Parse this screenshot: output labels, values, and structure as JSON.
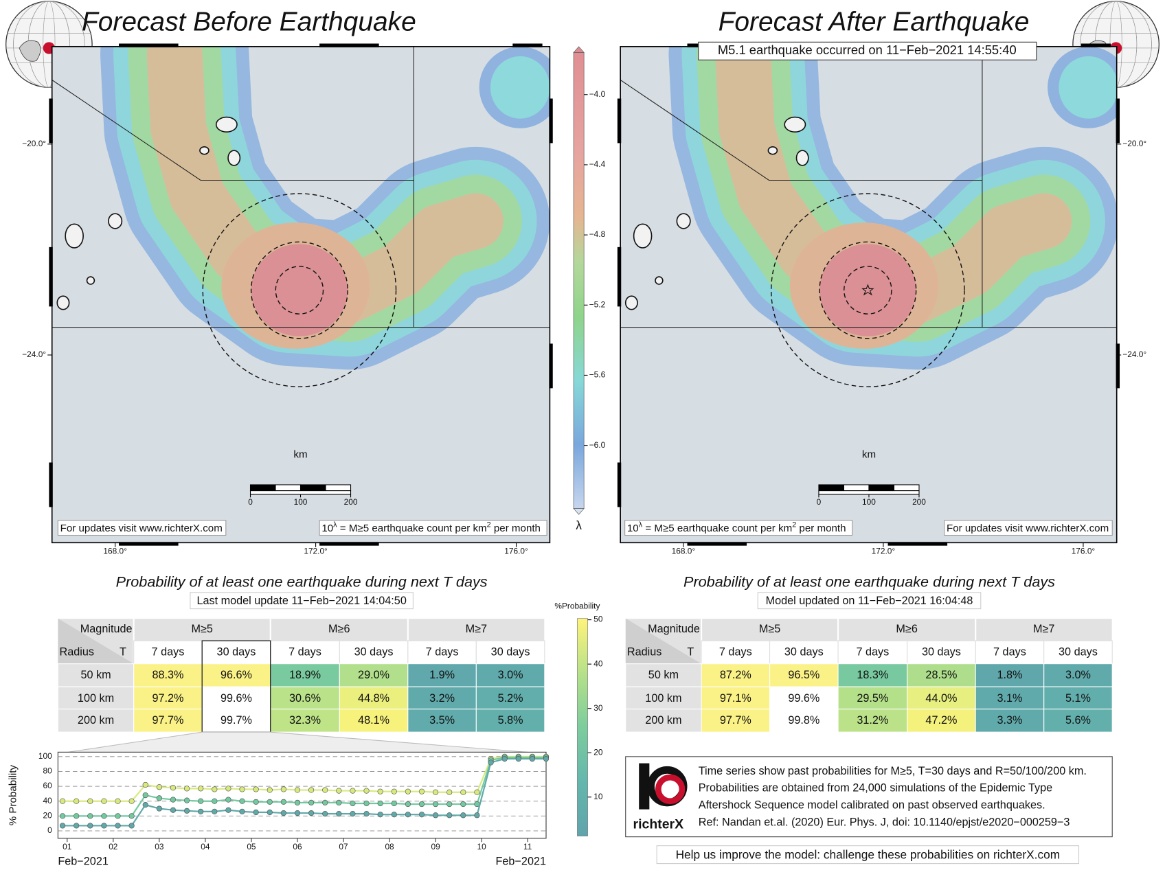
{
  "maps": [
    {
      "title": "Forecast Before Earthquake",
      "xlim": [
        166.74,
        176.67
      ],
      "ylim": [
        -27.56,
        -18.15
      ],
      "xticks": [
        {
          "value": 168,
          "label": "168.0°"
        },
        {
          "value": 172,
          "label": "172.0°"
        },
        {
          "value": 176,
          "label": "176.0°"
        }
      ],
      "yticks": [
        {
          "value": -20,
          "label": "−20.0°"
        },
        {
          "value": -24,
          "label": "−24.0°"
        }
      ],
      "scale_label": "km",
      "scale_ticks": [
        0,
        100,
        200
      ],
      "credit": "For updates visit www.richterX.com",
      "unit_note": [
        "10",
        "λ",
        " = M≥5 earthquake count per km",
        "2",
        " per month"
      ]
    },
    {
      "title": "Forecast After Earthquake",
      "annotation": "M5.1 earthquake occurred on 11−Feb−2021 14:55:40",
      "xlim": [
        166.74,
        176.67
      ],
      "ylim": [
        -27.56,
        -18.15
      ],
      "xticks": [
        {
          "value": 168,
          "label": "168.0°"
        },
        {
          "value": 172,
          "label": "172.0°"
        },
        {
          "value": 176,
          "label": "176.0°"
        }
      ],
      "yticks": [
        {
          "value": -20,
          "label": "−20.0°"
        },
        {
          "value": -24,
          "label": "−24.0°"
        }
      ],
      "scale_label": "km",
      "scale_ticks": [
        0,
        100,
        200
      ],
      "credit": "For updates visit www.richterX.com",
      "unit_note": [
        "10",
        "λ",
        " = M≥5 earthquake count per km",
        "2",
        " per month"
      ]
    }
  ],
  "colorbar": {
    "label": "λ",
    "lim": [
      -6.36,
      -3.76
    ],
    "ticks": [
      {
        "value": -4,
        "label": "−4.0"
      },
      {
        "value": -4.4,
        "label": "−4.4"
      },
      {
        "value": -4.8,
        "label": "−4.8"
      },
      {
        "value": -5.2,
        "label": "−5.2"
      },
      {
        "value": -5.6,
        "label": "−5.6"
      },
      {
        "value": -6,
        "label": "−6.0"
      }
    ]
  },
  "tables": [
    {
      "title": "Probability of at least one earthquake during next T days",
      "update": "Last model update 11−Feb−2021 14:04:50",
      "header1": [
        "Magnitude",
        "M≥5",
        "M≥6",
        "M≥7"
      ],
      "header2": [
        "Radius",
        "T",
        "7 days",
        "30 days",
        "7 days",
        "30 days",
        "7 days",
        "30 days"
      ],
      "rows": [
        [
          "50 km",
          "88.3%",
          "96.6%",
          "18.9%",
          "29.0%",
          "1.9%",
          "3.0%"
        ],
        [
          "100 km",
          "97.2%",
          "99.6%",
          "30.6%",
          "44.8%",
          "3.2%",
          "5.2%"
        ],
        [
          "200 km",
          "97.7%",
          "99.7%",
          "32.3%",
          "48.1%",
          "3.5%",
          "5.8%"
        ]
      ]
    },
    {
      "title": "Probability of at least one earthquake during next T days",
      "update": "Model updated on 11−Feb−2021 16:04:48",
      "header1": [
        "Magnitude",
        "M≥5",
        "M≥6",
        "M≥7"
      ],
      "header2": [
        "Radius",
        "T",
        "7 days",
        "30 days",
        "7 days",
        "30 days",
        "7 days",
        "30 days"
      ],
      "rows": [
        [
          "50 km",
          "87.2%",
          "96.5%",
          "18.3%",
          "28.5%",
          "1.8%",
          "3.0%"
        ],
        [
          "100 km",
          "97.1%",
          "99.6%",
          "29.5%",
          "44.0%",
          "3.1%",
          "5.1%"
        ],
        [
          "200 km",
          "97.7%",
          "99.8%",
          "31.2%",
          "47.2%",
          "3.3%",
          "5.6%"
        ]
      ]
    }
  ],
  "prob_colorbar": {
    "label": "%Probability",
    "lim": [
      1.2,
      50.3
    ],
    "ticks": [
      10,
      20,
      30,
      40,
      50
    ]
  },
  "chart_data": {
    "type": "line",
    "ylabel": "% Probability",
    "xlim": [
      0.8,
      11.4
    ],
    "ylim": [
      -10,
      106
    ],
    "xticks": [
      {
        "value": 1,
        "label": "01"
      },
      {
        "value": 2,
        "label": "02"
      },
      {
        "value": 3,
        "label": "03"
      },
      {
        "value": 4,
        "label": "04"
      },
      {
        "value": 5,
        "label": "05"
      },
      {
        "value": 6,
        "label": "06"
      },
      {
        "value": 7,
        "label": "07"
      },
      {
        "value": 8,
        "label": "08"
      },
      {
        "value": 9,
        "label": "09"
      },
      {
        "value": 10,
        "label": "10"
      },
      {
        "value": 11,
        "label": "11"
      }
    ],
    "x_start_label": "Feb−2021",
    "x_end_label": "Feb−2021",
    "yticks": [
      0,
      20,
      40,
      60,
      80,
      100
    ],
    "grid": true,
    "x": [
      0.9,
      1.2,
      1.5,
      1.8,
      2.1,
      2.4,
      2.7,
      3.0,
      3.3,
      3.6,
      3.9,
      4.2,
      4.5,
      4.8,
      5.1,
      5.4,
      5.7,
      6.0,
      6.3,
      6.6,
      6.9,
      7.2,
      7.5,
      7.8,
      8.1,
      8.4,
      8.7,
      9.0,
      9.3,
      9.6,
      9.9,
      10.2,
      10.5,
      10.8,
      11.1,
      11.4
    ],
    "series": [
      {
        "color": "#d9ea7c",
        "values": [
          40,
          40,
          40,
          40,
          40,
          40,
          62,
          59,
          58,
          57,
          57,
          56,
          57,
          56,
          56,
          55,
          56,
          55,
          55,
          55,
          54,
          54,
          54,
          53,
          53,
          53,
          53,
          52,
          52,
          52,
          52,
          97,
          100,
          100,
          100,
          100
        ]
      },
      {
        "color": "#72c9a0",
        "values": [
          20,
          20,
          20,
          20,
          20,
          20,
          48,
          44,
          42,
          41,
          40,
          40,
          42,
          40,
          39,
          39,
          39,
          38,
          38,
          38,
          38,
          37,
          37,
          37,
          37,
          36,
          36,
          36,
          36,
          36,
          36,
          95,
          99,
          99,
          99,
          99
        ]
      },
      {
        "color": "#5fa9a9",
        "values": [
          7,
          7,
          7,
          7,
          7,
          7,
          35,
          30,
          28,
          27,
          26,
          26,
          28,
          26,
          25,
          25,
          24,
          24,
          24,
          23,
          23,
          23,
          23,
          22,
          22,
          22,
          22,
          21,
          21,
          21,
          21,
          92,
          97,
          97,
          97,
          97
        ]
      }
    ]
  },
  "info": {
    "logo": "richterX",
    "lines": [
      "Time series show past probabilities for M≥5, T=30 days and R=50/100/200 km.",
      "Probabilities are obtained from 24,000 simulations of the Epidemic Type",
      "Aftershock Sequence model calibrated on past observed earthquakes.",
      "Ref: Nandan et.al. (2020) Eur. Phys. J, doi: 10.1140/epjst/e2020−000259−3"
    ],
    "footer": "Help us improve the model: challenge these probabilities on richterX.com"
  }
}
